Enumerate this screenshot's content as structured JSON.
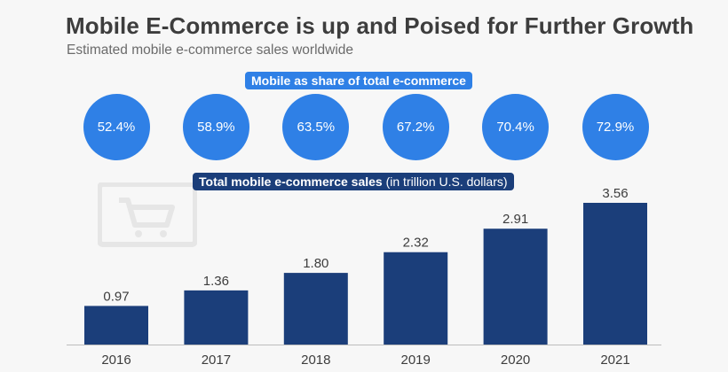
{
  "header": {
    "title": "Mobile E-Commerce is up and Poised for Further Growth",
    "subtitle": "Estimated mobile e-commerce sales worldwide"
  },
  "labels": {
    "share_pill": "Mobile as share of total e-commerce",
    "total_pill": "Total mobile e-commerce sales",
    "total_pill_unit": "(in trillion U.S. dollars)"
  },
  "colors": {
    "bar": "#1b3e7a",
    "circle": "#2f80e6",
    "axis": "#bdbdbd",
    "text": "#3d3d3d"
  },
  "watermark_icon": "shopping-cart-monitor-icon",
  "chart_data": {
    "type": "bar",
    "title": "Mobile E-Commerce is up and Poised for Further Growth",
    "subtitle": "Estimated mobile e-commerce sales worldwide",
    "categories": [
      "2016",
      "2017",
      "2018",
      "2019",
      "2020",
      "2021"
    ],
    "series": [
      {
        "name": "Total mobile e-commerce sales",
        "values": [
          0.97,
          1.36,
          1.8,
          2.32,
          2.91,
          3.56
        ],
        "value_labels": [
          "0.97",
          "1.36",
          "1.80",
          "2.32",
          "2.91",
          "3.56"
        ]
      }
    ],
    "share_of_total": [
      "52.4%",
      "58.9%",
      "63.5%",
      "67.2%",
      "70.4%",
      "72.9%"
    ],
    "ylabel": "",
    "unit": "trillion U.S. dollars",
    "ylim": [
      0,
      3.56
    ],
    "grid": false,
    "legend": "none"
  }
}
